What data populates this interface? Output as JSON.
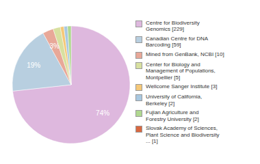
{
  "chart_data": {
    "type": "pie",
    "categories": [
      "Centre for Biodiversity\nGenomics [229]",
      "Canadian Centre for DNA\nBarcoding [59]",
      "Mined from GenBank, NCBI [10]",
      "Center for Biology and\nManagement of Populations,\nMontpellier [5]",
      "Wellcome Sanger Institute [3]",
      "University of California,\nBerkeley [2]",
      "Fujian Agriculture and\nForestry University [2]",
      "Slovak Academy of Sciences,\nPlant Science and Biodiversity\n... [1]"
    ],
    "values": [
      74,
      19,
      3,
      2,
      1,
      1,
      1,
      0
    ],
    "value_labels": [
      "74%",
      "19%",
      "3%",
      null,
      null,
      null,
      null,
      null
    ],
    "colors": [
      "#deb8de",
      "#b8cfe0",
      "#e8a898",
      "#d8e0a0",
      "#f5c878",
      "#a8c8e0",
      "#b0d890",
      "#d96840"
    ],
    "data_labels": true,
    "legend": "right"
  }
}
